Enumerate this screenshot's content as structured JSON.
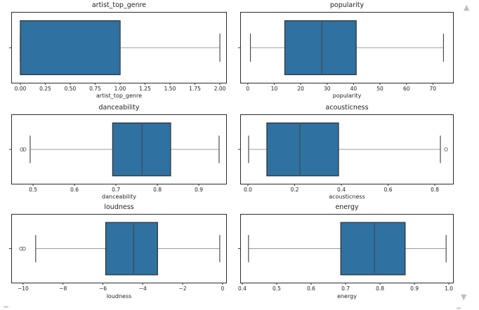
{
  "page": {
    "background": "#ffffff"
  },
  "style": {
    "box_fill": "#2f71a0",
    "box_edge": "#2e2e2e",
    "median_color": "#3b5266",
    "whisker_color": "#9c9c9c",
    "cap_color": "#4d4d4d",
    "outlier_edge": "#666666",
    "spine_color": "#2b2b2b",
    "tick_color": "#333333",
    "text_color": "#1f1f1f",
    "scroll_icon_color": "#bcc0c1"
  },
  "controls": {
    "scroll_up_icon": "scroll-up-arrow",
    "scroll_down_icon": "scroll-down-arrow",
    "scroll_up_glyph": "▲",
    "scroll_down_glyph": "▼"
  },
  "chart_data": [
    {
      "type": "boxplot",
      "orientation": "horizontal",
      "title": "artist_top_genre",
      "xlabel": "artist_top_genre",
      "xlim": [
        -0.084,
        2.063
      ],
      "grid": false,
      "tick_values": [
        0,
        0.25,
        0.5,
        0.75,
        1.0,
        1.25,
        1.5,
        1.75,
        2.0
      ],
      "tick_labels": [
        "0.00",
        "0.25",
        "0.50",
        "0.75",
        "1.00",
        "1.25",
        "1.50",
        "1.75",
        "2.00"
      ],
      "stats": {
        "whislo": 0.0,
        "q1": 0.0,
        "med": 1.0,
        "q3": 1.0,
        "whishi": 2.0,
        "outliers": []
      }
    },
    {
      "type": "boxplot",
      "orientation": "horizontal",
      "title": "popularity",
      "xlabel": "popularity",
      "xlim": [
        -2.6,
        77.6
      ],
      "grid": false,
      "tick_values": [
        0,
        10,
        20,
        30,
        40,
        50,
        60,
        70
      ],
      "tick_labels": [
        "0",
        "10",
        "20",
        "30",
        "40",
        "50",
        "60",
        "70"
      ],
      "stats": {
        "whislo": 1,
        "q1": 14,
        "med": 28,
        "q3": 41,
        "whishi": 74,
        "outliers": []
      }
    },
    {
      "type": "boxplot",
      "orientation": "horizontal",
      "title": "danceability",
      "xlabel": "danceability",
      "xlim": [
        0.449,
        0.966
      ],
      "grid": false,
      "tick_values": [
        0.5,
        0.6,
        0.7,
        0.8,
        0.9
      ],
      "tick_labels": [
        "0.5",
        "0.6",
        "0.7",
        "0.8",
        "0.9"
      ],
      "stats": {
        "whislo": 0.493,
        "q1": 0.692,
        "med": 0.763,
        "q3": 0.832,
        "whishi": 0.949,
        "outliers": [
          0.473,
          0.479
        ]
      }
    },
    {
      "type": "boxplot",
      "orientation": "horizontal",
      "title": "acousticness",
      "xlabel": "acousticness",
      "xlim": [
        -0.03,
        0.878
      ],
      "grid": false,
      "tick_values": [
        0.0,
        0.2,
        0.4,
        0.6,
        0.8
      ],
      "tick_labels": [
        "0.0",
        "0.2",
        "0.4",
        "0.6",
        "0.8"
      ],
      "stats": {
        "whislo": 0.003,
        "q1": 0.081,
        "med": 0.222,
        "q3": 0.388,
        "whishi": 0.824,
        "outliers": [
          0.848
        ]
      }
    },
    {
      "type": "boxplot",
      "orientation": "horizontal",
      "title": "loudness",
      "xlabel": "loudness",
      "xlim": [
        -10.56,
        0.18
      ],
      "grid": false,
      "tick_values": [
        -10,
        -8,
        -6,
        -4,
        -2,
        0
      ],
      "tick_labels": [
        "−10",
        "−8",
        "−6",
        "−4",
        "−2",
        "0"
      ],
      "stats": {
        "whislo": -9.37,
        "q1": -5.86,
        "med": -4.46,
        "q3": -3.26,
        "whishi": -0.14,
        "outliers": [
          -10.1,
          -9.96
        ]
      }
    },
    {
      "type": "boxplot",
      "orientation": "horizontal",
      "title": "energy",
      "xlabel": "energy",
      "xlim": [
        0.396,
        1.012
      ],
      "grid": false,
      "tick_values": [
        0.4,
        0.5,
        0.6,
        0.7,
        0.8,
        0.9,
        1.0
      ],
      "tick_labels": [
        "0.4",
        "0.5",
        "0.6",
        "0.7",
        "0.8",
        "0.9",
        "1.0"
      ],
      "stats": {
        "whislo": 0.418,
        "q1": 0.686,
        "med": 0.784,
        "q3": 0.873,
        "whishi": 0.992,
        "outliers": []
      }
    }
  ]
}
